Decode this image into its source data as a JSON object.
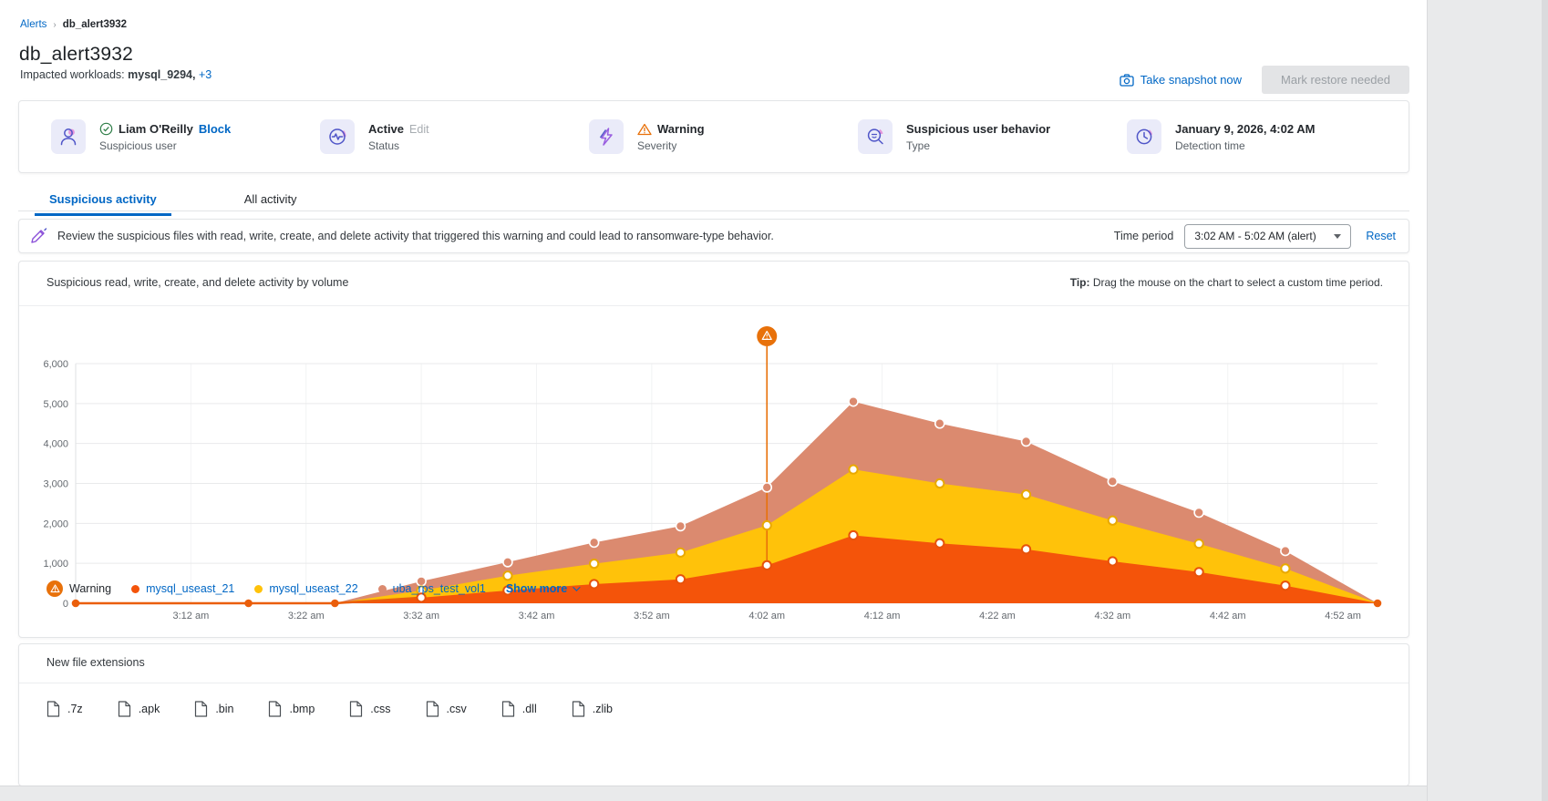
{
  "breadcrumb": {
    "root": "Alerts",
    "separator": "›",
    "current": "db_alert3932"
  },
  "header": {
    "title": "db_alert3932",
    "impacted_label": "Impacted workloads:",
    "impacted_value": "mysql_9294,",
    "impacted_more": "+3",
    "take_snapshot_label": "Take snapshot now",
    "mark_restore_label": "Mark restore needed"
  },
  "summary": {
    "cards": [
      {
        "icon": "user-icon",
        "value": "Liam O'Reilly",
        "action": "Block",
        "label": "Suspicious user"
      },
      {
        "icon": "status-icon",
        "value": "Active",
        "action": "Edit",
        "label": "Status"
      },
      {
        "icon": "severity-icon",
        "value": "Warning",
        "label": "Severity"
      },
      {
        "icon": "type-icon",
        "value": "Suspicious user behavior",
        "label": "Type"
      },
      {
        "icon": "clock-icon",
        "value": "January 9, 2026, 4:02 AM",
        "label": "Detection time"
      }
    ]
  },
  "tabs": [
    {
      "label": "Suspicious activity",
      "active": true
    },
    {
      "label": "All activity",
      "active": false
    }
  ],
  "review_banner": {
    "text": "Review the suspicious files with read, write, create, and delete activity that triggered this warning and could lead to ransomware-type behavior.",
    "time_period_label": "Time period",
    "time_period_value": "3:02 AM - 5:02 AM (alert)",
    "reset_label": "Reset"
  },
  "chart_section": {
    "title": "Suspicious read, write, create, and delete activity by volume",
    "tip_bold": "Tip:",
    "tip_text": " Drag the mouse on the chart to select a custom time period.",
    "legend_warning_label": "Warning",
    "show_more_label": "Show more"
  },
  "chart_data": {
    "type": "area",
    "stacked": true,
    "title": "Suspicious read, write, create, and delete activity by volume",
    "x": [
      "3:02 am",
      "3:09 am",
      "3:17 am",
      "3:24 am",
      "3:32 am",
      "3:39 am",
      "3:47 am",
      "3:54 am",
      "4:02 am",
      "4:09 am",
      "4:17 am",
      "4:24 am",
      "4:32 am",
      "4:39 am",
      "4:47 am",
      "4:54 am"
    ],
    "x_minutes": [
      0,
      7.5,
      15,
      22.5,
      30,
      37.5,
      45,
      52.5,
      60,
      67.5,
      75,
      82.5,
      90,
      97.5,
      105,
      113
    ],
    "x_domain_minutes": [
      0,
      113
    ],
    "x_tick_labels": [
      "3:12 am",
      "3:22 am",
      "3:32 am",
      "3:42 am",
      "3:52 am",
      "4:02 am",
      "4:12 am",
      "4:22 am",
      "4:32 am",
      "4:42 am",
      "4:52 am"
    ],
    "x_tick_minutes": [
      10,
      20,
      30,
      40,
      50,
      60,
      70,
      80,
      90,
      100,
      110
    ],
    "ylim": [
      0,
      6000
    ],
    "y_tick_values": [
      0,
      1000,
      2000,
      3000,
      4000,
      5000,
      6000
    ],
    "y_tick_labels": [
      "0",
      "1,000",
      "2,000",
      "3,000",
      "4,000",
      "5,000",
      "6,000"
    ],
    "grid": true,
    "legend_position": "bottom",
    "series": [
      {
        "name": "mysql_useast_21",
        "color": "#F4540A",
        "ring": "#E8520A",
        "values": [
          0,
          0,
          0,
          0,
          140,
          320,
          480,
          600,
          950,
          1700,
          1500,
          1350,
          1050,
          780,
          440,
          0
        ]
      },
      {
        "name": "mysql_useast_22",
        "color": "#FFC20A",
        "ring": "#E9A900",
        "values": [
          0,
          0,
          0,
          0,
          180,
          370,
          510,
          670,
          1000,
          1650,
          1500,
          1370,
          1020,
          710,
          430,
          0
        ]
      },
      {
        "name": "uba_rps_test_vol1",
        "color": "#DB8A6F",
        "ring": "#DB8A6F",
        "values": [
          0,
          0,
          0,
          0,
          230,
          340,
          530,
          660,
          950,
          1700,
          1500,
          1330,
          980,
          780,
          440,
          0
        ]
      }
    ],
    "warning_marker": {
      "x_label": "4:02 am",
      "x_minutes": 60,
      "color": "#E8710A"
    },
    "baseline_dot_minutes": [
      0,
      15,
      22.5,
      113
    ],
    "baseline_color": "#EA5E0B"
  },
  "extensions": {
    "title": "New file extensions",
    "items": [
      ".7z",
      ".apk",
      ".bin",
      ".bmp",
      ".css",
      ".csv",
      ".dll",
      ".zlib"
    ]
  },
  "colors": {
    "link": "#0067c5",
    "warning_orange": "#E8710A",
    "icon_purple": "#4F55C8",
    "icon_bg": "#eaebf9",
    "green_check": "#2D7D46"
  }
}
